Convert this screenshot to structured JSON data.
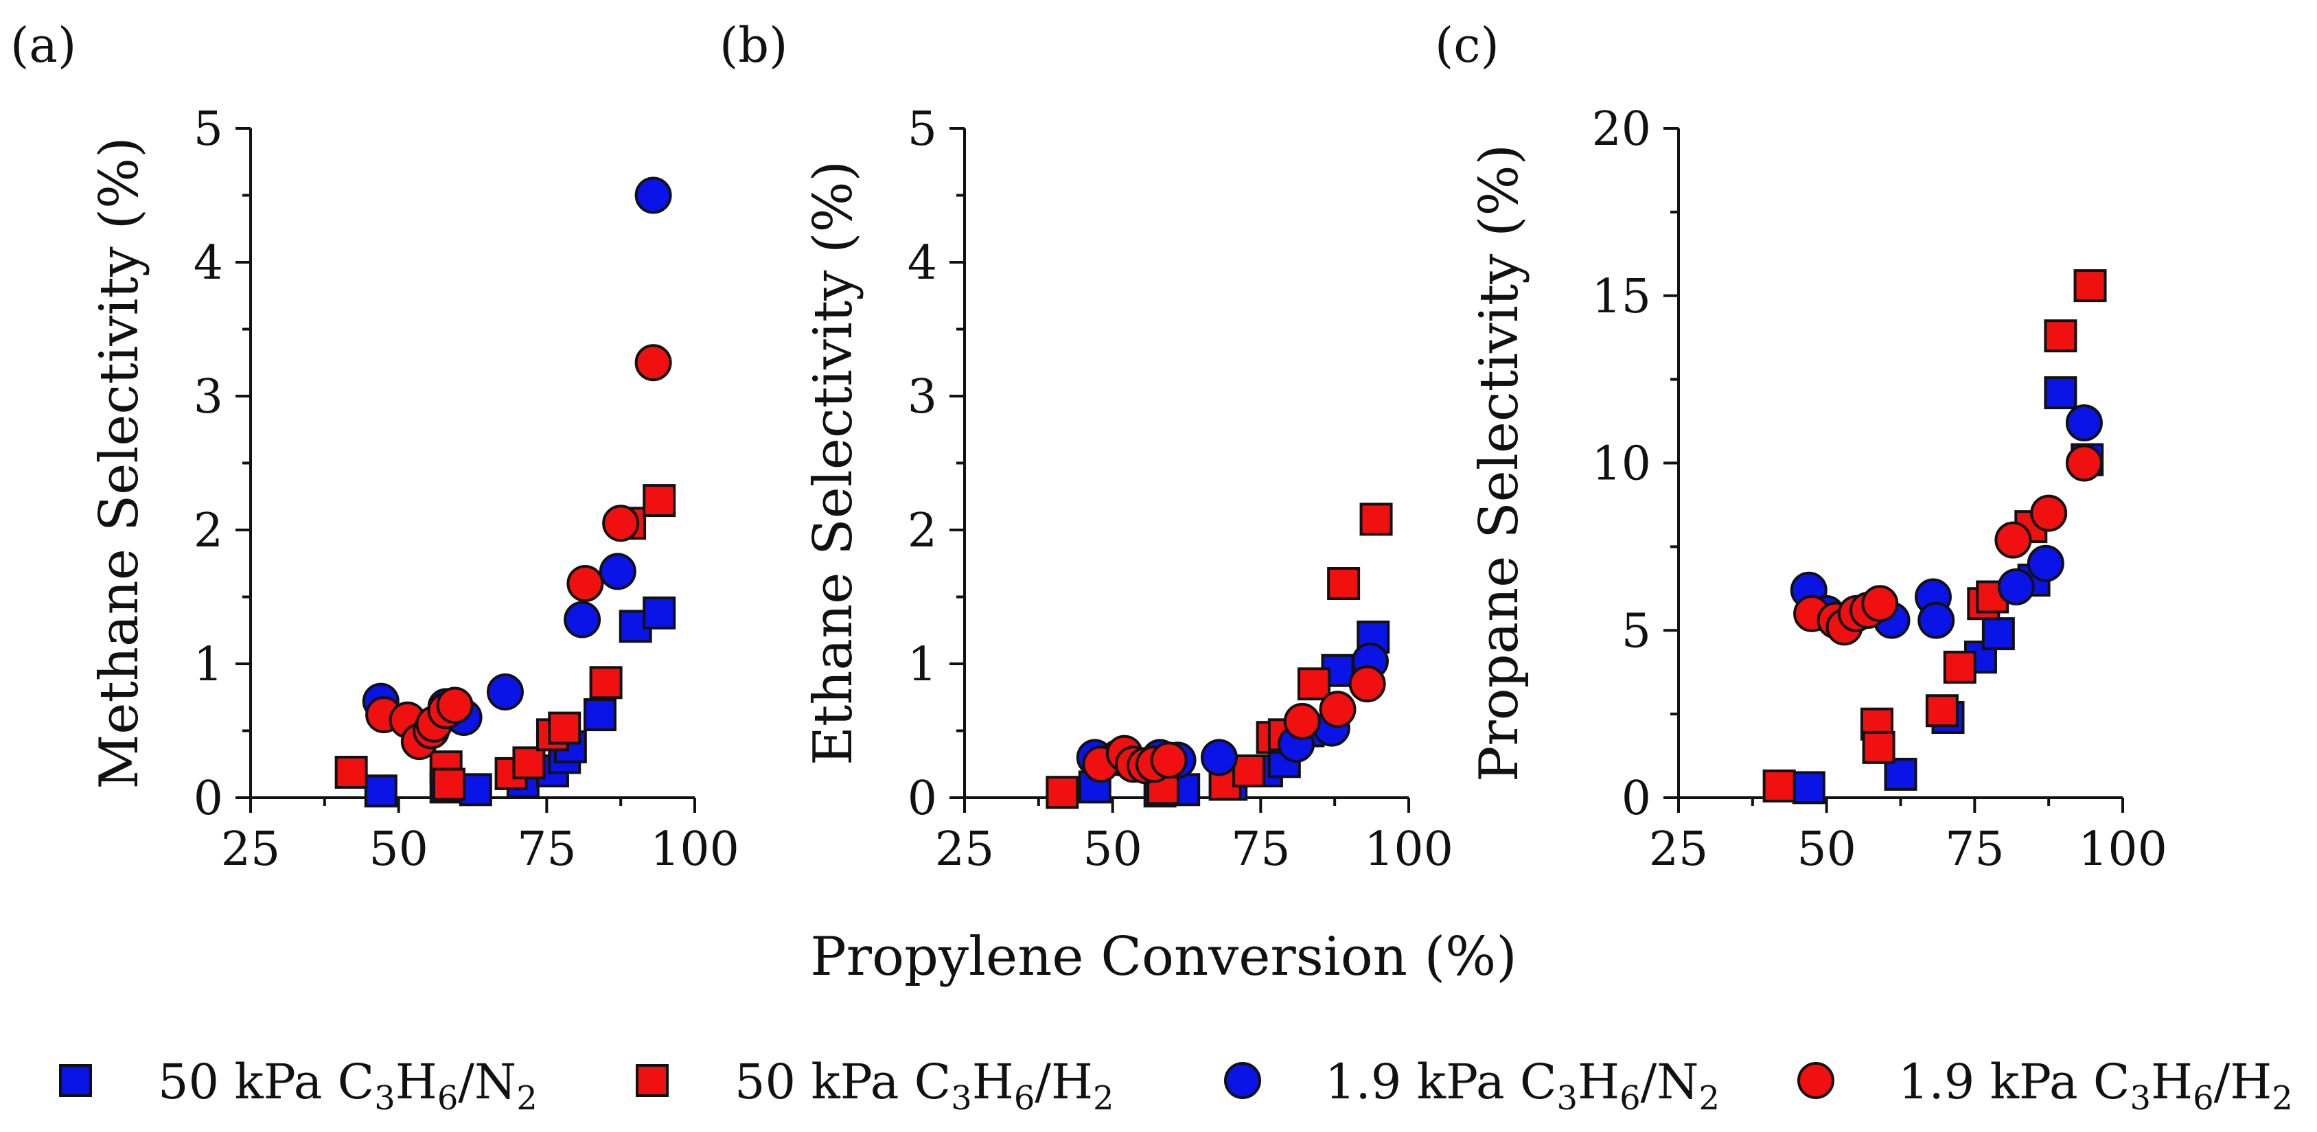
{
  "figure": {
    "shared_xlabel": "Propylene Conversion (%)"
  },
  "legend": [
    {
      "series": "50 kPa C3H6/N2",
      "parts": {
        "prefix": "50 kPa C",
        "s1": "3",
        "m1": "H",
        "s2": "6",
        "m2": "/N",
        "s3": "2",
        "m3": ""
      }
    },
    {
      "series": "50 kPa C3H6/H2",
      "parts": {
        "prefix": "50 kPa C",
        "s1": "3",
        "m1": "H",
        "s2": "6",
        "m2": "/H",
        "s3": "2",
        "m3": ""
      }
    },
    {
      "series": "1.9 kPa C3H6/N2",
      "parts": {
        "prefix": "1.9 kPa C",
        "s1": "3",
        "m1": "H",
        "s2": "6",
        "m2": "/N",
        "s3": "2",
        "m3": ""
      }
    },
    {
      "series": "1.9 kPa C3H6/H2",
      "parts": {
        "prefix": "1.9 kPa C",
        "s1": "3",
        "m1": "H",
        "s2": "6",
        "m2": "/H",
        "s3": "2",
        "m3": ""
      }
    }
  ],
  "chart_data": [
    {
      "panel": "(a)",
      "type": "scatter",
      "xlabel": "",
      "ylabel": "Methane Selectivity (%)",
      "xlim": [
        25,
        100
      ],
      "ylim": [
        0,
        5
      ],
      "xticks": [
        25,
        50,
        75,
        100
      ],
      "yticks": [
        0,
        1,
        2,
        3,
        4,
        5
      ],
      "series": [
        {
          "name": "50 kPa C3H6/N2",
          "marker": "square",
          "color": "#0a14e6",
          "points": [
            [
              47,
              0.05
            ],
            [
              58,
              0.08
            ],
            [
              63,
              0.06
            ],
            [
              71,
              0.12
            ],
            [
              76,
              0.2
            ],
            [
              78,
              0.3
            ],
            [
              79,
              0.38
            ],
            [
              84,
              0.62
            ],
            [
              90,
              1.28
            ],
            [
              94,
              1.38
            ]
          ]
        },
        {
          "name": "50 kPa C3H6/H2",
          "marker": "square",
          "color": "#f01010",
          "points": [
            [
              42,
              0.19
            ],
            [
              58,
              0.23
            ],
            [
              58.5,
              0.1
            ],
            [
              69,
              0.18
            ],
            [
              72,
              0.26
            ],
            [
              76,
              0.47
            ],
            [
              78,
              0.52
            ],
            [
              85,
              0.86
            ],
            [
              89,
              2.05
            ],
            [
              94,
              2.22
            ]
          ]
        },
        {
          "name": "1.9 kPa C3H6/N2",
          "marker": "circle",
          "color": "#0a14e6",
          "points": [
            [
              47,
              0.72
            ],
            [
              58,
              0.68
            ],
            [
              61,
              0.6
            ],
            [
              68,
              0.79
            ],
            [
              81,
              1.33
            ],
            [
              87,
              1.69
            ],
            [
              93,
              4.5
            ]
          ]
        },
        {
          "name": "1.9 kPa C3H6/H2",
          "marker": "circle",
          "color": "#f01010",
          "points": [
            [
              47.5,
              0.62
            ],
            [
              51.5,
              0.58
            ],
            [
              53.5,
              0.42
            ],
            [
              55.5,
              0.5
            ],
            [
              56,
              0.55
            ],
            [
              58,
              0.65
            ],
            [
              59.5,
              0.69
            ],
            [
              81.5,
              1.6
            ],
            [
              87.5,
              2.05
            ],
            [
              93,
              3.25
            ]
          ]
        }
      ]
    },
    {
      "panel": "(b)",
      "type": "scatter",
      "xlabel": "",
      "ylabel": "Ethane Selectivity (%)",
      "xlim": [
        25,
        100
      ],
      "ylim": [
        0,
        5
      ],
      "xticks": [
        25,
        50,
        75,
        100
      ],
      "yticks": [
        0,
        1,
        2,
        3,
        4,
        5
      ],
      "series": [
        {
          "name": "50 kPa C3H6/N2",
          "marker": "square",
          "color": "#0a14e6",
          "points": [
            [
              47,
              0.08
            ],
            [
              58,
              0.05
            ],
            [
              62,
              0.06
            ],
            [
              70,
              0.1
            ],
            [
              76,
              0.2
            ],
            [
              79,
              0.27
            ],
            [
              83,
              0.5
            ],
            [
              88,
              0.95
            ],
            [
              94,
              1.2
            ]
          ]
        },
        {
          "name": "50 kPa C3H6/H2",
          "marker": "square",
          "color": "#f01010",
          "points": [
            [
              41.5,
              0.04
            ],
            [
              58.5,
              0.07
            ],
            [
              69,
              0.1
            ],
            [
              73,
              0.2
            ],
            [
              77,
              0.45
            ],
            [
              79,
              0.47
            ],
            [
              84,
              0.85
            ],
            [
              89,
              1.6
            ],
            [
              94.5,
              2.08
            ]
          ]
        },
        {
          "name": "1.9 kPa C3H6/N2",
          "marker": "circle",
          "color": "#0a14e6",
          "points": [
            [
              47,
              0.3
            ],
            [
              51,
              0.3
            ],
            [
              58,
              0.3
            ],
            [
              61,
              0.28
            ],
            [
              68,
              0.3
            ],
            [
              81,
              0.4
            ],
            [
              87,
              0.52
            ],
            [
              93.5,
              1.02
            ]
          ]
        },
        {
          "name": "1.9 kPa C3H6/H2",
          "marker": "circle",
          "color": "#f01010",
          "points": [
            [
              48,
              0.25
            ],
            [
              52,
              0.33
            ],
            [
              53.5,
              0.25
            ],
            [
              55.5,
              0.24
            ],
            [
              57,
              0.25
            ],
            [
              59.5,
              0.28
            ],
            [
              82,
              0.57
            ],
            [
              88,
              0.66
            ],
            [
              93,
              0.85
            ]
          ]
        }
      ]
    },
    {
      "panel": "(c)",
      "type": "scatter",
      "xlabel": "",
      "ylabel": "Propane Selectivity (%)",
      "xlim": [
        25,
        100
      ],
      "ylim": [
        0,
        20
      ],
      "xticks": [
        25,
        50,
        75,
        100
      ],
      "yticks": [
        0,
        5,
        10,
        15,
        20
      ],
      "series": [
        {
          "name": "50 kPa C3H6/N2",
          "marker": "square",
          "color": "#0a14e6",
          "points": [
            [
              47,
              0.3
            ],
            [
              62.5,
              0.7
            ],
            [
              70.5,
              2.4
            ],
            [
              76,
              4.2
            ],
            [
              79,
              4.9
            ],
            [
              85,
              6.5
            ],
            [
              89.5,
              12.1
            ],
            [
              94,
              10.1
            ]
          ]
        },
        {
          "name": "50 kPa C3H6/H2",
          "marker": "square",
          "color": "#f01010",
          "points": [
            [
              42,
              0.35
            ],
            [
              58.5,
              2.2
            ],
            [
              58.8,
              1.5
            ],
            [
              69.5,
              2.6
            ],
            [
              72.5,
              3.9
            ],
            [
              76.5,
              5.8
            ],
            [
              78,
              6.0
            ],
            [
              84.5,
              8.1
            ],
            [
              89.5,
              13.8
            ],
            [
              94.5,
              15.3
            ]
          ]
        },
        {
          "name": "1.9 kPa C3H6/N2",
          "marker": "circle",
          "color": "#0a14e6",
          "points": [
            [
              47,
              6.2
            ],
            [
              50,
              5.5
            ],
            [
              61,
              5.3
            ],
            [
              68,
              6.0
            ],
            [
              68.5,
              5.3
            ],
            [
              82,
              6.3
            ],
            [
              87,
              7.0
            ],
            [
              93.5,
              11.2
            ]
          ]
        },
        {
          "name": "1.9 kPa C3H6/H2",
          "marker": "circle",
          "color": "#f01010",
          "points": [
            [
              47.5,
              5.5
            ],
            [
              51.5,
              5.3
            ],
            [
              53,
              5.1
            ],
            [
              55,
              5.5
            ],
            [
              57,
              5.6
            ],
            [
              59,
              5.8
            ],
            [
              81.5,
              7.7
            ],
            [
              87.5,
              8.5
            ],
            [
              93.5,
              10.0
            ]
          ]
        }
      ]
    }
  ]
}
